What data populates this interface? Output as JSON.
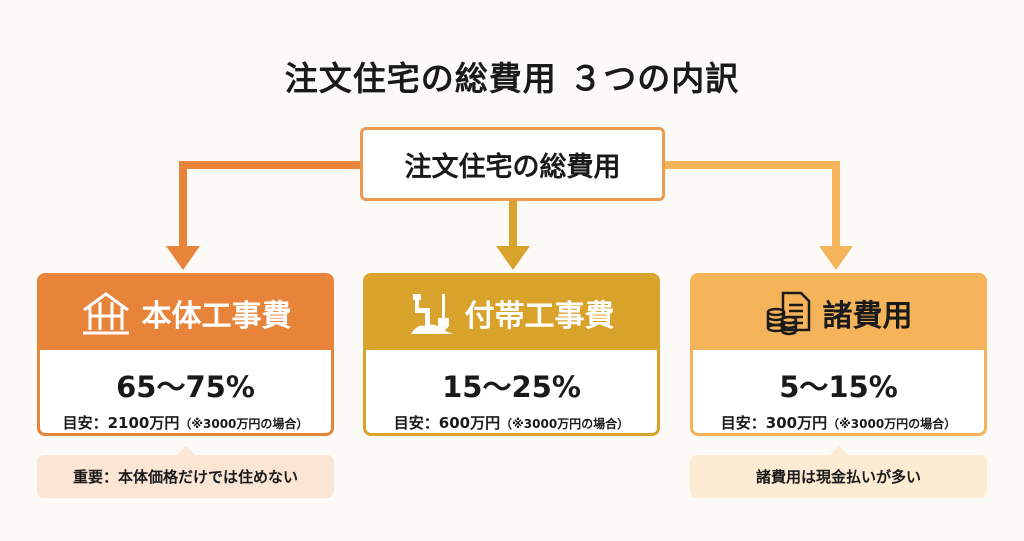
{
  "title": "注文住宅の総費用 ３つの内訳",
  "root": "注文住宅の総費用",
  "colors": {
    "main": "#e8833a",
    "sub": "#d9a22b",
    "misc": "#f5b45a"
  },
  "cards": [
    {
      "label": "本体工事費",
      "icon": "house-frame-icon",
      "percent": "65〜75%",
      "estimate": "目安：2100万円",
      "note_small": "（※3000万円の場合）",
      "color": "#e8833a"
    },
    {
      "label": "付帯工事費",
      "icon": "pipe-shovel-icon",
      "percent": "15〜25%",
      "estimate": "目安：600万円",
      "note_small": "（※3000万円の場合）",
      "color": "#d9a22b"
    },
    {
      "label": "諸費用",
      "icon": "coins-document-icon",
      "percent": "5〜15%",
      "estimate": "目安：300万円",
      "note_small": "（※3000万円の場合）",
      "color": "#f5b45a"
    }
  ],
  "notes": {
    "main": "重要：本体価格だけでは住めない",
    "misc": "諸費用は現金払いが多い"
  }
}
